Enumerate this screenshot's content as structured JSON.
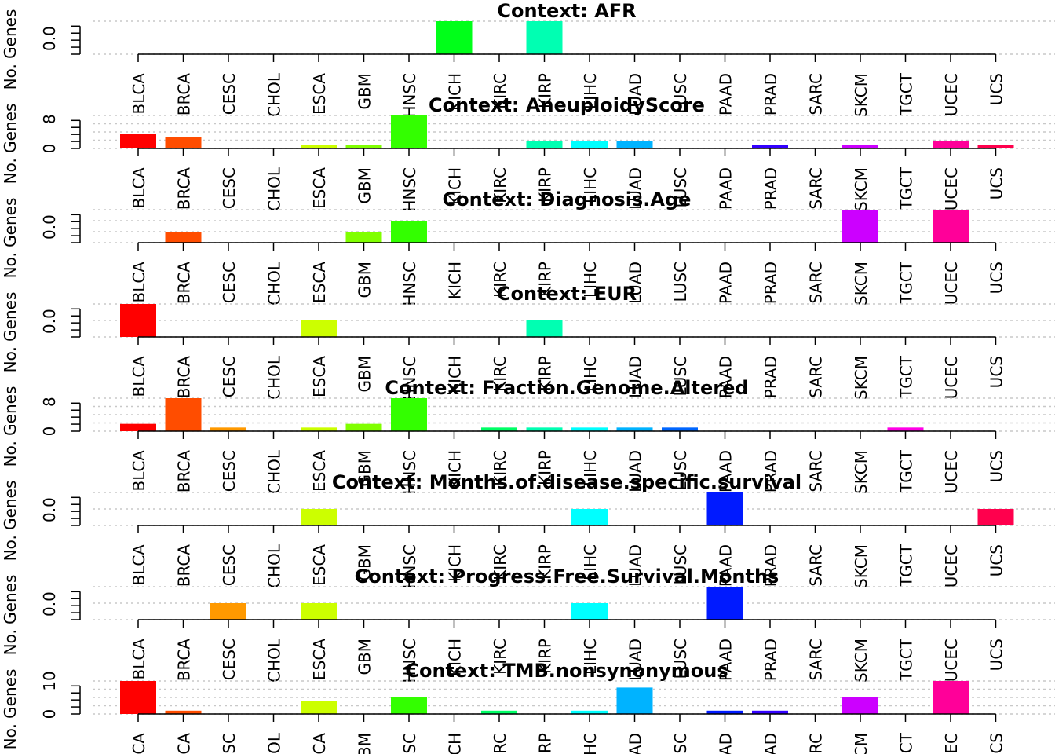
{
  "chart_data": {
    "type": "bar",
    "ylabel": "No. Genes",
    "categories": [
      "BLCA",
      "BRCA",
      "CESC",
      "CHOL",
      "ESCA",
      "GBM",
      "HNSC",
      "KICH",
      "KIRC",
      "KIRP",
      "LIHC",
      "LUAD",
      "LUSC",
      "PAAD",
      "PRAD",
      "SARC",
      "SKCM",
      "TGCT",
      "UCEC",
      "UCS"
    ],
    "colors": [
      "#FF0000",
      "#FF4D00",
      "#FF9900",
      "#FFE500",
      "#CCFF00",
      "#80FF00",
      "#33FF00",
      "#00FF19",
      "#00FF66",
      "#00FFB2",
      "#00FFFF",
      "#00B3FF",
      "#0066FF",
      "#001AFF",
      "#3300FF",
      "#7F00FF",
      "#CC00FF",
      "#FF00E6",
      "#FF0099",
      "#FF004D"
    ],
    "panels": [
      {
        "title": "Context: AFR",
        "ymax": 1,
        "ticks": [
          "0.0"
        ],
        "values": [
          0,
          0,
          0,
          0,
          0,
          0,
          0,
          1,
          0,
          1,
          0,
          0,
          0,
          0,
          0,
          0,
          0,
          0,
          0,
          0
        ]
      },
      {
        "title": "Context: AneuploidyScore",
        "ymax": 9,
        "ticks": [
          "0",
          "8"
        ],
        "values": [
          4,
          3,
          0,
          0,
          1,
          1,
          9,
          0,
          0,
          2,
          2,
          2,
          0,
          0,
          1,
          0,
          1,
          0,
          2,
          1
        ]
      },
      {
        "title": "Context: Diagnosis.Age",
        "ymax": 3,
        "ticks": [
          "0.0"
        ],
        "values": [
          0,
          1,
          0,
          0,
          0,
          1,
          2,
          0,
          0,
          0,
          0,
          0,
          0,
          0,
          0,
          0,
          3,
          0,
          3,
          0
        ]
      },
      {
        "title": "Context: EUR",
        "ymax": 2,
        "ticks": [
          "0.0"
        ],
        "values": [
          2,
          0,
          0,
          0,
          1,
          0,
          0,
          0,
          0,
          1,
          0,
          0,
          0,
          0,
          0,
          0,
          0,
          0,
          0,
          0
        ]
      },
      {
        "title": "Context: Fraction.Genome.Altered",
        "ymax": 9,
        "ticks": [
          "0",
          "8"
        ],
        "values": [
          2,
          9,
          1,
          0,
          1,
          2,
          9,
          0,
          1,
          1,
          1,
          1,
          1,
          0,
          0,
          0,
          0,
          1,
          0,
          0
        ]
      },
      {
        "title": "Context: Months.of.disease.specific.survival",
        "ymax": 2,
        "ticks": [
          "0.0"
        ],
        "values": [
          0,
          0,
          0,
          0,
          1,
          0,
          0,
          0,
          0,
          0,
          1,
          0,
          0,
          2,
          0,
          0,
          0,
          0,
          0,
          1
        ]
      },
      {
        "title": "Context: Progress.Free.Survival.Months",
        "ymax": 2,
        "ticks": [
          "0.0"
        ],
        "values": [
          0,
          0,
          1,
          0,
          1,
          0,
          0,
          0,
          0,
          0,
          1,
          0,
          0,
          2,
          0,
          0,
          0,
          0,
          0,
          0
        ]
      },
      {
        "title": "Context: TMB.nonsynonymous",
        "ymax": 10,
        "ticks": [
          "0",
          "10"
        ],
        "values": [
          10,
          1,
          0,
          0,
          4,
          0,
          5,
          0,
          1,
          0,
          1,
          8,
          0,
          1,
          1,
          0,
          5,
          0,
          10,
          0
        ]
      }
    ]
  }
}
